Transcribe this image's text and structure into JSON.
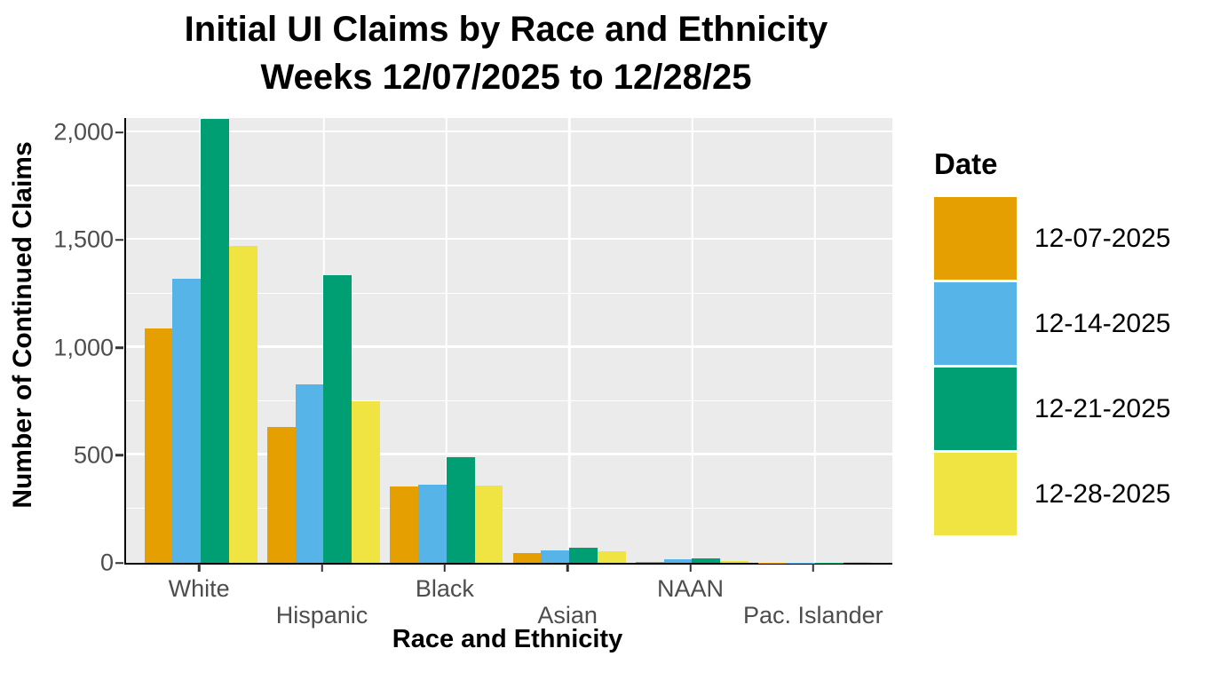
{
  "title": {
    "line1": "Initial UI Claims by Race and Ethnicity",
    "line2": "Weeks 12/07/2025 to 12/28/25"
  },
  "axes": {
    "y_title": "Number of Continued Claims",
    "x_title": "Race and Ethnicity",
    "y_ticks": [
      {
        "value": 0,
        "label": "0"
      },
      {
        "value": 500,
        "label": "500"
      },
      {
        "value": 1000,
        "label": "1,000"
      },
      {
        "value": 1500,
        "label": "1,500"
      },
      {
        "value": 2000,
        "label": "2,000"
      }
    ]
  },
  "legend": {
    "title": "Date"
  },
  "chart_data": {
    "type": "bar",
    "grouping": "dodged",
    "title": "Initial UI Claims by Race and Ethnicity Weeks 12/07/2025 to 12/28/25",
    "xlabel": "Race and Ethnicity",
    "ylabel": "Number of Continued Claims",
    "categories": [
      "White",
      "Hispanic",
      "Black",
      "Asian",
      "NAAN",
      "Pac. Islander"
    ],
    "series": [
      {
        "name": "12-07-2025",
        "color": "#E69F00",
        "values": [
          1090,
          630,
          355,
          45,
          5,
          1
        ]
      },
      {
        "name": "12-14-2025",
        "color": "#56B4E9",
        "values": [
          1320,
          830,
          365,
          57,
          15,
          1
        ]
      },
      {
        "name": "12-21-2025",
        "color": "#009E73",
        "values": [
          2065,
          1335,
          490,
          70,
          19,
          2
        ]
      },
      {
        "name": "12-28-2025",
        "color": "#F0E442",
        "values": [
          1475,
          750,
          360,
          54,
          9,
          6
        ]
      }
    ],
    "ylim": [
      0,
      2067
    ],
    "y_major_gridlines": [
      500,
      1000,
      1500,
      2000
    ],
    "y_minor_gridlines": [
      250,
      750,
      1250,
      1750
    ],
    "x_gridlines_at_category_centers": true,
    "grid_on": true,
    "legend_position": "right",
    "panel_bg": "#EBEBEB",
    "grid_color": "#FFFFFF",
    "axis_line_color": "#000000",
    "tick_label_color": "#4D4D4D"
  }
}
